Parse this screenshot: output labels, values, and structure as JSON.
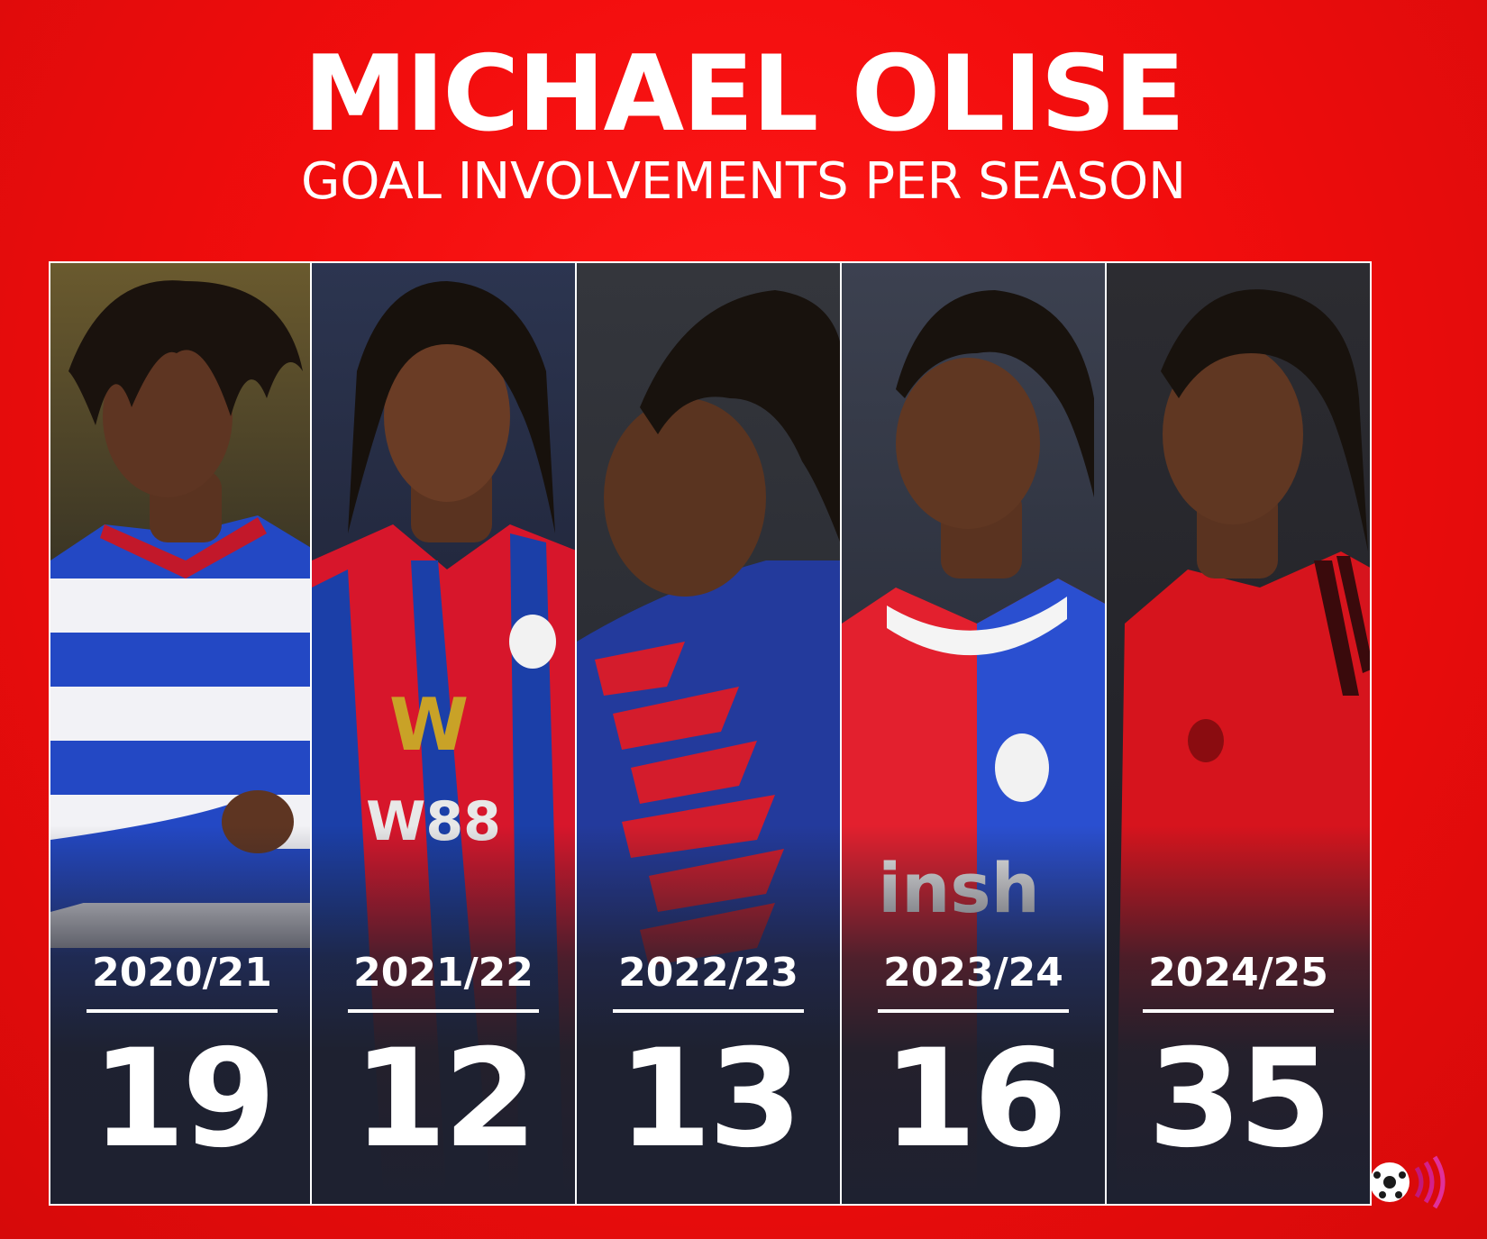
{
  "header": {
    "title": "MICHAEL OLISE",
    "subtitle": "GOAL INVOLVEMENTS PER SEASON"
  },
  "seasons": [
    {
      "season": "2020/21",
      "value": "19",
      "kit": "reading-blue-white-hoops",
      "colors": [
        "#1f3fbf",
        "#ffffff"
      ]
    },
    {
      "season": "2021/22",
      "value": "12",
      "kit": "crystal-palace-red-blue",
      "colors": [
        "#d7162b",
        "#1b3fa8"
      ]
    },
    {
      "season": "2022/23",
      "value": "13",
      "kit": "crystal-palace-blue-red",
      "colors": [
        "#233a9c",
        "#d41c2c"
      ]
    },
    {
      "season": "2023/24",
      "value": "16",
      "kit": "crystal-palace-red-blue",
      "colors": [
        "#e3202e",
        "#2a4fd0"
      ]
    },
    {
      "season": "2024/25",
      "value": "35",
      "kit": "bayern-red",
      "colors": [
        "#d6141d",
        "#8a0c10"
      ]
    }
  ],
  "colors": {
    "background": "#f20d0d",
    "text": "#ffffff",
    "panel_shade": "#1e2130"
  },
  "icons": {
    "corner_logo": "football-broadcast-icon"
  }
}
